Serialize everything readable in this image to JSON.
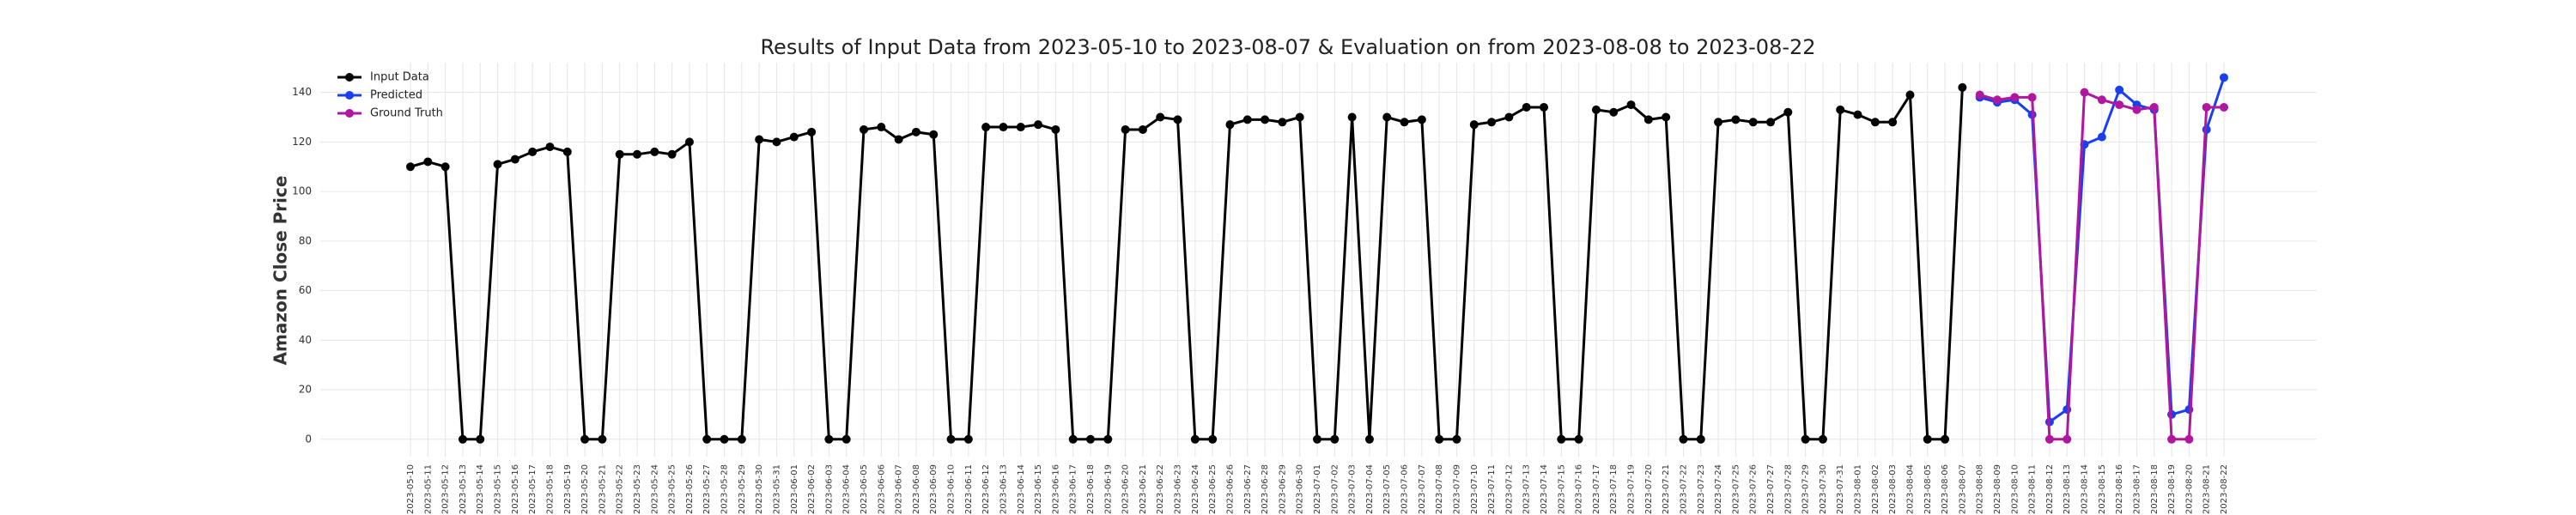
{
  "chart_data": {
    "type": "line",
    "title": "Results of Input Data from 2023-05-10 to 2023-08-07 & Evaluation on from 2023-08-08 to 2023-08-22",
    "ylabel": "Amazon Close Price",
    "x": [
      "2023-05-10",
      "2023-05-11",
      "2023-05-12",
      "2023-05-13",
      "2023-05-14",
      "2023-05-15",
      "2023-05-16",
      "2023-05-17",
      "2023-05-18",
      "2023-05-19",
      "2023-05-20",
      "2023-05-21",
      "2023-05-22",
      "2023-05-23",
      "2023-05-24",
      "2023-05-25",
      "2023-05-26",
      "2023-05-27",
      "2023-05-28",
      "2023-05-29",
      "2023-05-30",
      "2023-05-31",
      "2023-06-01",
      "2023-06-02",
      "2023-06-03",
      "2023-06-04",
      "2023-06-05",
      "2023-06-06",
      "2023-06-07",
      "2023-06-08",
      "2023-06-09",
      "2023-06-10",
      "2023-06-11",
      "2023-06-12",
      "2023-06-13",
      "2023-06-14",
      "2023-06-15",
      "2023-06-16",
      "2023-06-17",
      "2023-06-18",
      "2023-06-19",
      "2023-06-20",
      "2023-06-21",
      "2023-06-22",
      "2023-06-23",
      "2023-06-24",
      "2023-06-25",
      "2023-06-26",
      "2023-06-27",
      "2023-06-28",
      "2023-06-29",
      "2023-06-30",
      "2023-07-01",
      "2023-07-02",
      "2023-07-03",
      "2023-07-04",
      "2023-07-05",
      "2023-07-06",
      "2023-07-07",
      "2023-07-08",
      "2023-07-09",
      "2023-07-10",
      "2023-07-11",
      "2023-07-12",
      "2023-07-13",
      "2023-07-14",
      "2023-07-15",
      "2023-07-16",
      "2023-07-17",
      "2023-07-18",
      "2023-07-19",
      "2023-07-20",
      "2023-07-21",
      "2023-07-22",
      "2023-07-23",
      "2023-07-24",
      "2023-07-25",
      "2023-07-26",
      "2023-07-27",
      "2023-07-28",
      "2023-07-29",
      "2023-07-30",
      "2023-07-31",
      "2023-08-01",
      "2023-08-02",
      "2023-08-03",
      "2023-08-04",
      "2023-08-05",
      "2023-08-06",
      "2023-08-07",
      "2023-08-08",
      "2023-08-09",
      "2023-08-10",
      "2023-08-11",
      "2023-08-12",
      "2023-08-13",
      "2023-08-14",
      "2023-08-15",
      "2023-08-16",
      "2023-08-17",
      "2023-08-18",
      "2023-08-19",
      "2023-08-20",
      "2023-08-21",
      "2023-08-22"
    ],
    "series": [
      {
        "name": "Input Data",
        "color": "#000000",
        "values": [
          110,
          112,
          110,
          0,
          0,
          111,
          113,
          116,
          118,
          116,
          0,
          0,
          115,
          115,
          116,
          115,
          120,
          0,
          0,
          0,
          121,
          120,
          122,
          124,
          0,
          0,
          125,
          126,
          121,
          124,
          123,
          0,
          0,
          126,
          126,
          126,
          127,
          125,
          0,
          0,
          0,
          125,
          125,
          130,
          129,
          0,
          0,
          127,
          129,
          129,
          128,
          130,
          0,
          0,
          130,
          0,
          130,
          128,
          129,
          0,
          0,
          127,
          128,
          130,
          134,
          134,
          0,
          0,
          133,
          132,
          135,
          129,
          130,
          0,
          0,
          128,
          129,
          128,
          128,
          132,
          0,
          0,
          133,
          131,
          128,
          128,
          139,
          0,
          0,
          142,
          null,
          null,
          null,
          null,
          null,
          null,
          null,
          null,
          null,
          null,
          null,
          null,
          null,
          null,
          null
        ]
      },
      {
        "name": "Predicted",
        "color": "#1a3ff2",
        "values": [
          null,
          null,
          null,
          null,
          null,
          null,
          null,
          null,
          null,
          null,
          null,
          null,
          null,
          null,
          null,
          null,
          null,
          null,
          null,
          null,
          null,
          null,
          null,
          null,
          null,
          null,
          null,
          null,
          null,
          null,
          null,
          null,
          null,
          null,
          null,
          null,
          null,
          null,
          null,
          null,
          null,
          null,
          null,
          null,
          null,
          null,
          null,
          null,
          null,
          null,
          null,
          null,
          null,
          null,
          null,
          null,
          null,
          null,
          null,
          null,
          null,
          null,
          null,
          null,
          null,
          null,
          null,
          null,
          null,
          null,
          null,
          null,
          null,
          null,
          null,
          null,
          null,
          null,
          null,
          null,
          null,
          null,
          null,
          null,
          null,
          null,
          null,
          null,
          null,
          null,
          138,
          136,
          137,
          131,
          7,
          12,
          119,
          122,
          141,
          135,
          133,
          10,
          12,
          125,
          146
        ]
      },
      {
        "name": "Ground Truth",
        "color": "#b0179f",
        "values": [
          null,
          null,
          null,
          null,
          null,
          null,
          null,
          null,
          null,
          null,
          null,
          null,
          null,
          null,
          null,
          null,
          null,
          null,
          null,
          null,
          null,
          null,
          null,
          null,
          null,
          null,
          null,
          null,
          null,
          null,
          null,
          null,
          null,
          null,
          null,
          null,
          null,
          null,
          null,
          null,
          null,
          null,
          null,
          null,
          null,
          null,
          null,
          null,
          null,
          null,
          null,
          null,
          null,
          null,
          null,
          null,
          null,
          null,
          null,
          null,
          null,
          null,
          null,
          null,
          null,
          null,
          null,
          null,
          null,
          null,
          null,
          null,
          null,
          null,
          null,
          null,
          null,
          null,
          null,
          null,
          null,
          null,
          null,
          null,
          null,
          null,
          null,
          null,
          null,
          null,
          139,
          137,
          138,
          138,
          0,
          0,
          140,
          137,
          135,
          133,
          134,
          0,
          0,
          134,
          134
        ]
      }
    ],
    "ylim": [
      -7,
      152
    ],
    "yticks": [
      0,
      20,
      40,
      60,
      80,
      100,
      120,
      140
    ],
    "grid": true,
    "legend": "upper left"
  }
}
